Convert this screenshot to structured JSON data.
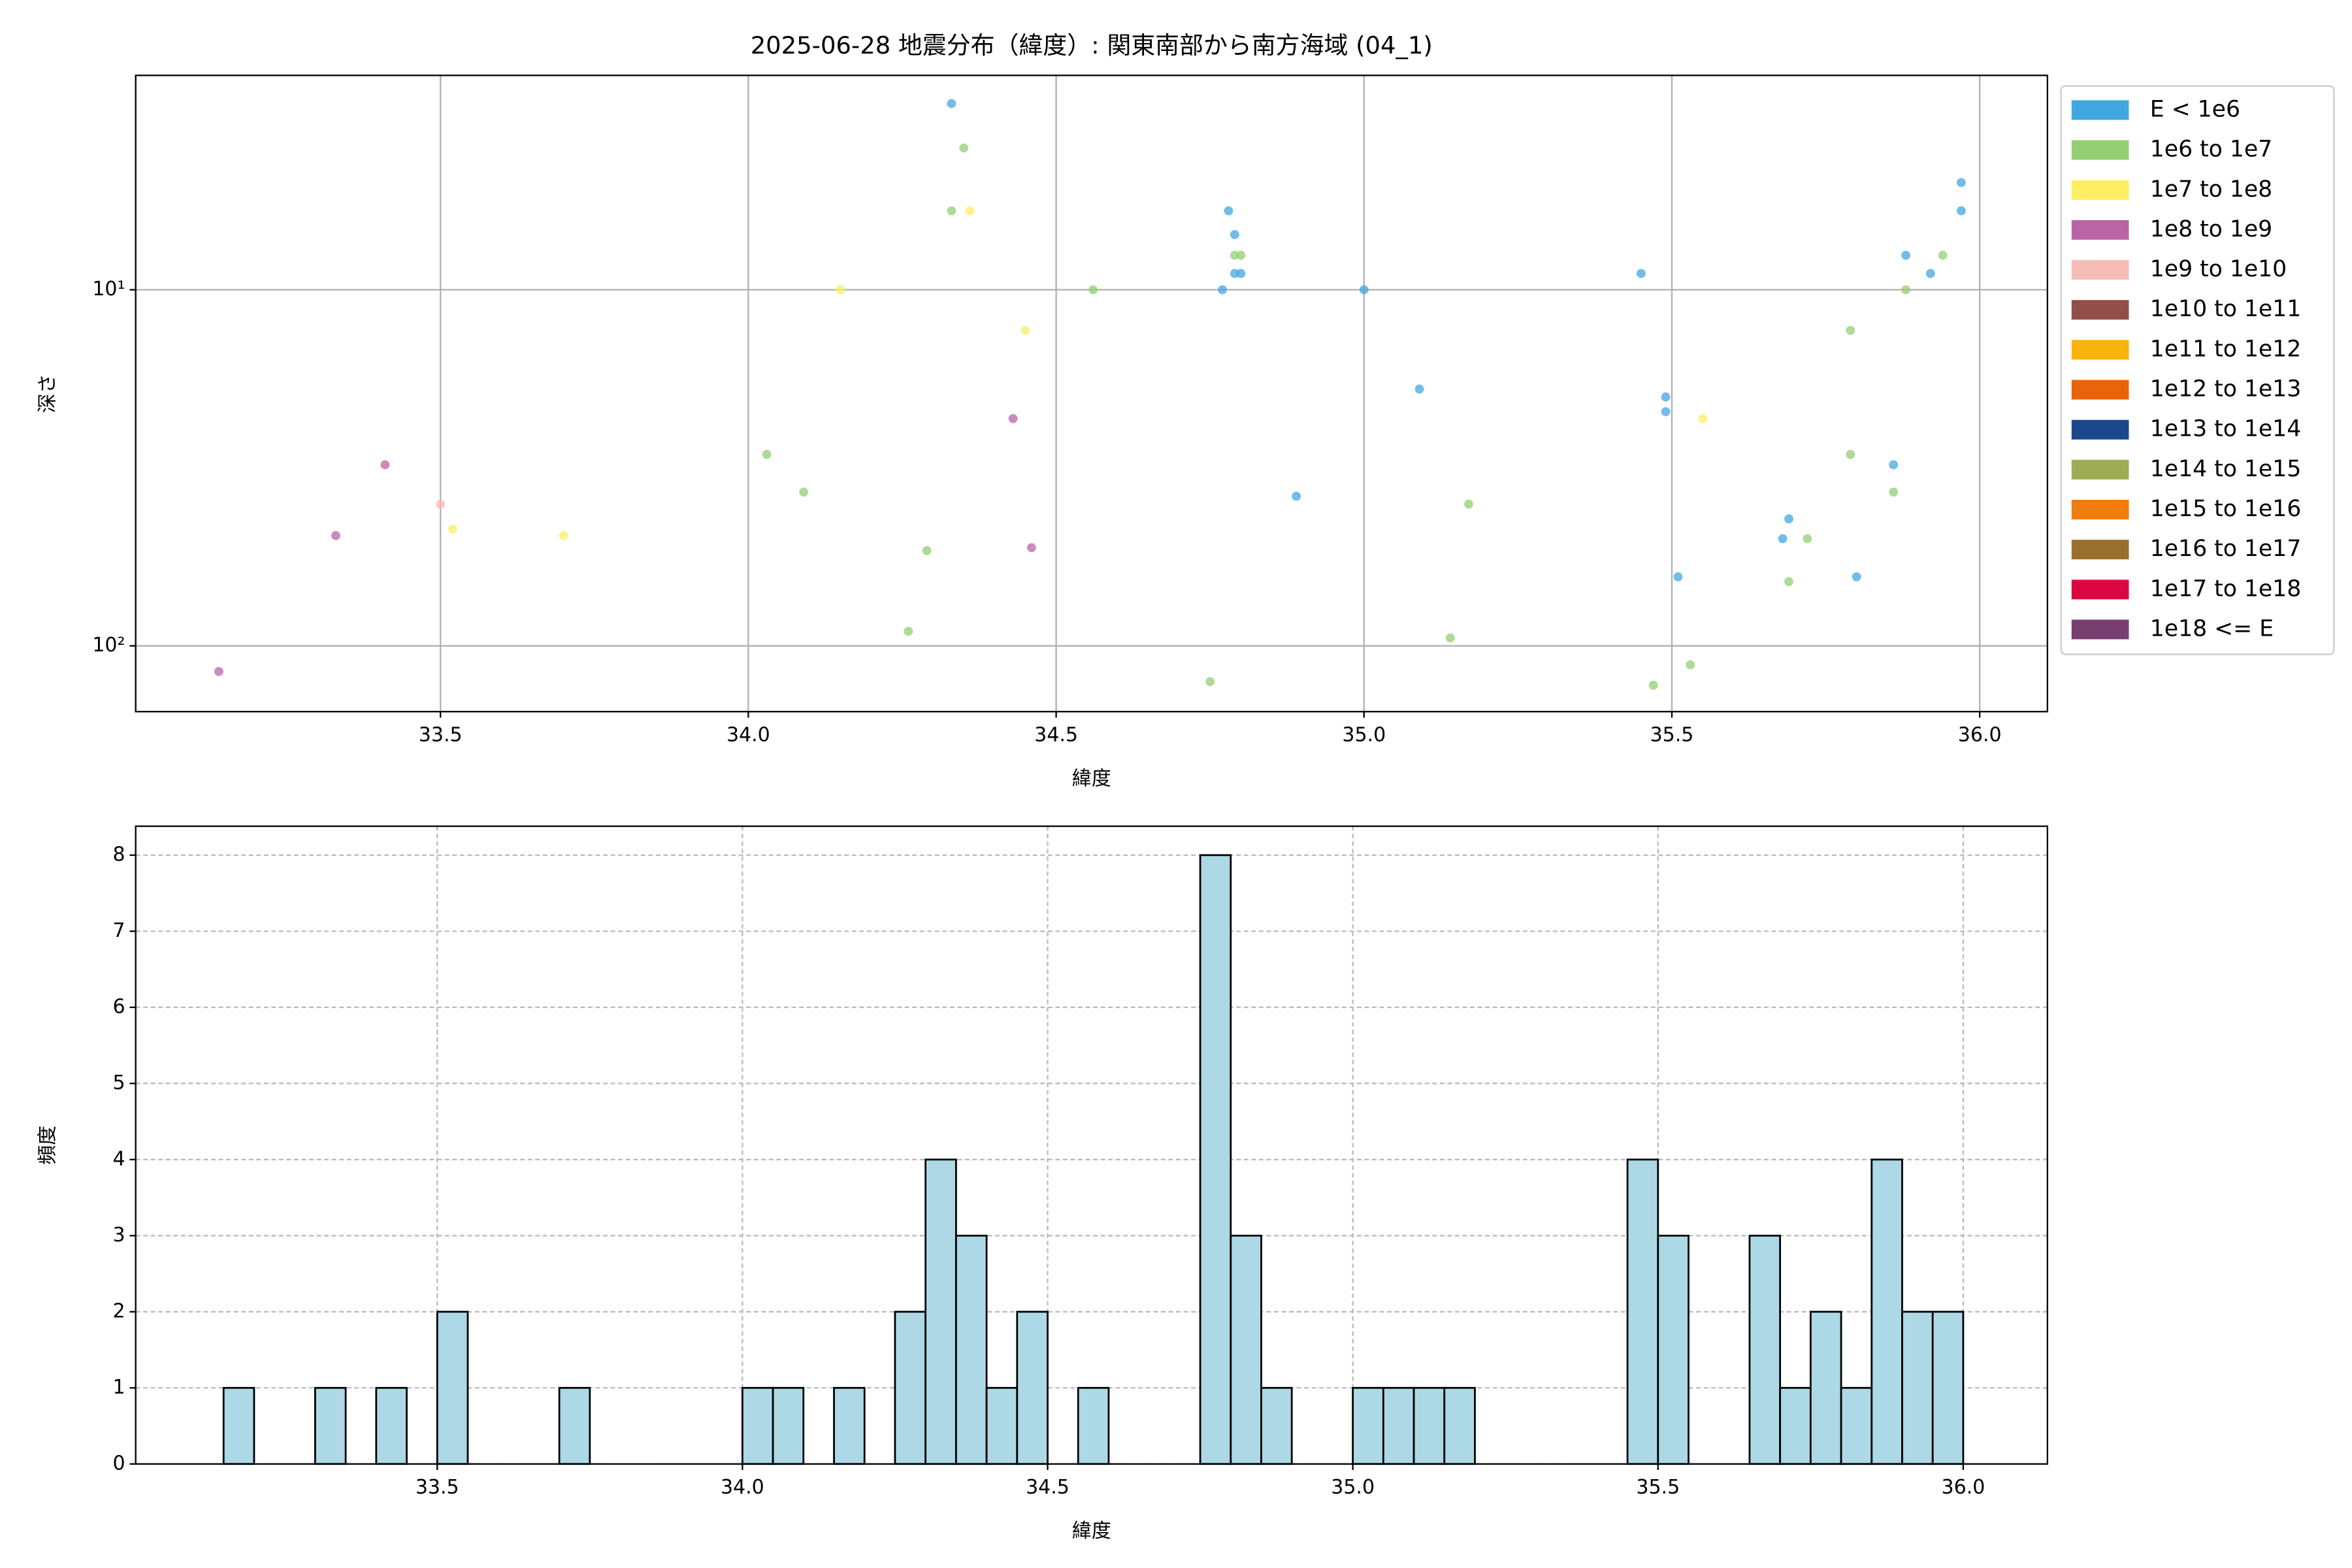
{
  "chart_data": [
    {
      "type": "scatter",
      "title": "2025-06-28 地震分布（緯度）: 関東南部から南方海域 (04_1)",
      "xlabel": "緯度",
      "ylabel": "深さ",
      "xlim": [
        33.005,
        36.11
      ],
      "ylim": [
        2.5,
        153
      ],
      "yscale": "log",
      "y_inverted": true,
      "grid": true,
      "xticks": [
        33.5,
        {
          "value": 34,
          "label": "34.0"
        },
        34.5,
        {
          "value": 35,
          "label": "35.0"
        },
        35.5,
        {
          "value": 36,
          "label": "36.0"
        }
      ],
      "yticks": [
        {
          "value": 10,
          "label": "10¹"
        },
        {
          "value": 100,
          "label": "10²"
        }
      ],
      "legend": "outside right",
      "series": [
        {
          "name": "E < 1e6",
          "color": "#41a7e0",
          "x": [
            34.33,
            34.78,
            34.79,
            34.79,
            34.8,
            34.77,
            35.0,
            35.45,
            35.09,
            34.89,
            35.49,
            35.49,
            35.51,
            35.69,
            35.68,
            35.8,
            35.86,
            35.97,
            35.97,
            35.88,
            35.92
          ],
          "values": [
            3.0,
            6.0,
            7.0,
            9.0,
            9.0,
            10,
            10,
            9.0,
            19,
            38,
            20,
            22,
            64,
            44,
            50,
            64,
            31,
            5.0,
            6.0,
            8.0,
            9.0
          ]
        },
        {
          "name": "1e6 to 1e7",
          "color": "#93cf72",
          "x": [
            34.35,
            34.33,
            34.56,
            34.79,
            34.8,
            34.03,
            34.09,
            34.29,
            34.26,
            34.75,
            35.14,
            35.17,
            35.53,
            35.47,
            35.69,
            35.72,
            35.79,
            35.86,
            35.79,
            35.88,
            35.94
          ],
          "values": [
            4.0,
            6.0,
            10,
            8.0,
            8.0,
            29,
            37,
            54,
            91,
            126,
            95,
            40,
            113,
            129,
            66,
            50,
            29,
            37,
            13,
            10,
            8.0
          ]
        },
        {
          "name": "1e7 to 1e8",
          "color": "#fdee64",
          "x": [
            34.36,
            34.15,
            34.45,
            35.55,
            33.52,
            33.7
          ],
          "values": [
            6.0,
            10,
            13,
            23,
            47,
            49
          ]
        },
        {
          "name": "1e8 to 1e9",
          "color": "#ba64a6",
          "x": [
            33.41,
            33.33,
            33.14,
            34.43,
            34.46
          ],
          "values": [
            31,
            49,
            118,
            23,
            53
          ]
        },
        {
          "name": "1e9 to 1e10",
          "color": "#f5bcb5",
          "x": [
            33.5
          ],
          "values": [
            40
          ]
        },
        {
          "name": "1e10 to 1e11",
          "color": "#934e4a",
          "x": [],
          "values": []
        },
        {
          "name": "1e11 to 1e12",
          "color": "#f8b40c",
          "x": [],
          "values": []
        },
        {
          "name": "1e12 to 1e13",
          "color": "#e8640a",
          "x": [],
          "values": []
        },
        {
          "name": "1e13 to 1e14",
          "color": "#1c468e",
          "x": [],
          "values": []
        },
        {
          "name": "1e14 to 1e15",
          "color": "#9ead53",
          "x": [],
          "values": []
        },
        {
          "name": "1e15 to 1e16",
          "color": "#f07d0e",
          "x": [],
          "values": []
        },
        {
          "name": "1e16 to 1e17",
          "color": "#9a6e2d",
          "x": [],
          "values": []
        },
        {
          "name": "1e17 to 1e18",
          "color": "#dc0741",
          "x": [],
          "values": []
        },
        {
          "name": "1e18 <= E",
          "color": "#773f70",
          "x": [],
          "values": []
        }
      ]
    },
    {
      "type": "histogram",
      "xlabel": "緯度",
      "ylabel": "頻度",
      "xlim": [
        33.006,
        36.138
      ],
      "ylim": [
        0,
        8.38
      ],
      "grid": true,
      "color": "#add8e6",
      "edgecolor": "#000000",
      "xticks": [
        33.5,
        {
          "value": 34,
          "label": "34.0"
        },
        34.5,
        {
          "value": 35,
          "label": "35.0"
        },
        35.5,
        {
          "value": 36,
          "label": "36.0"
        }
      ],
      "yticks": [
        0,
        1,
        2,
        3,
        4,
        5,
        6,
        7,
        8
      ],
      "bins": [
        33.15,
        33.2,
        33.25,
        33.3,
        33.35,
        33.4,
        33.45,
        33.5,
        33.55,
        33.6,
        33.65,
        33.7,
        33.75,
        33.8,
        33.85,
        33.9,
        33.95,
        34.0,
        34.05,
        34.1,
        34.15,
        34.2,
        34.25,
        34.3,
        34.35,
        34.4,
        34.45,
        34.5,
        34.55,
        34.6,
        34.65,
        34.7,
        34.75,
        34.8,
        34.85,
        34.9,
        34.95,
        35.0,
        35.05,
        35.1,
        35.15,
        35.2,
        35.25,
        35.3,
        35.35,
        35.4,
        35.45,
        35.5,
        35.55,
        35.6,
        35.65,
        35.7,
        35.75,
        35.8,
        35.85,
        35.9,
        35.95,
        36.0
      ],
      "values": [
        1,
        0,
        0,
        1,
        0,
        1,
        0,
        2,
        0,
        0,
        0,
        1,
        0,
        0,
        0,
        0,
        0,
        1,
        1,
        0,
        1,
        0,
        2,
        4,
        3,
        1,
        2,
        0,
        1,
        0,
        0,
        0,
        8,
        3,
        1,
        0,
        0,
        1,
        1,
        1,
        1,
        0,
        0,
        0,
        0,
        0,
        4,
        3,
        0,
        0,
        3,
        1,
        2,
        1,
        4,
        2,
        2
      ]
    }
  ]
}
